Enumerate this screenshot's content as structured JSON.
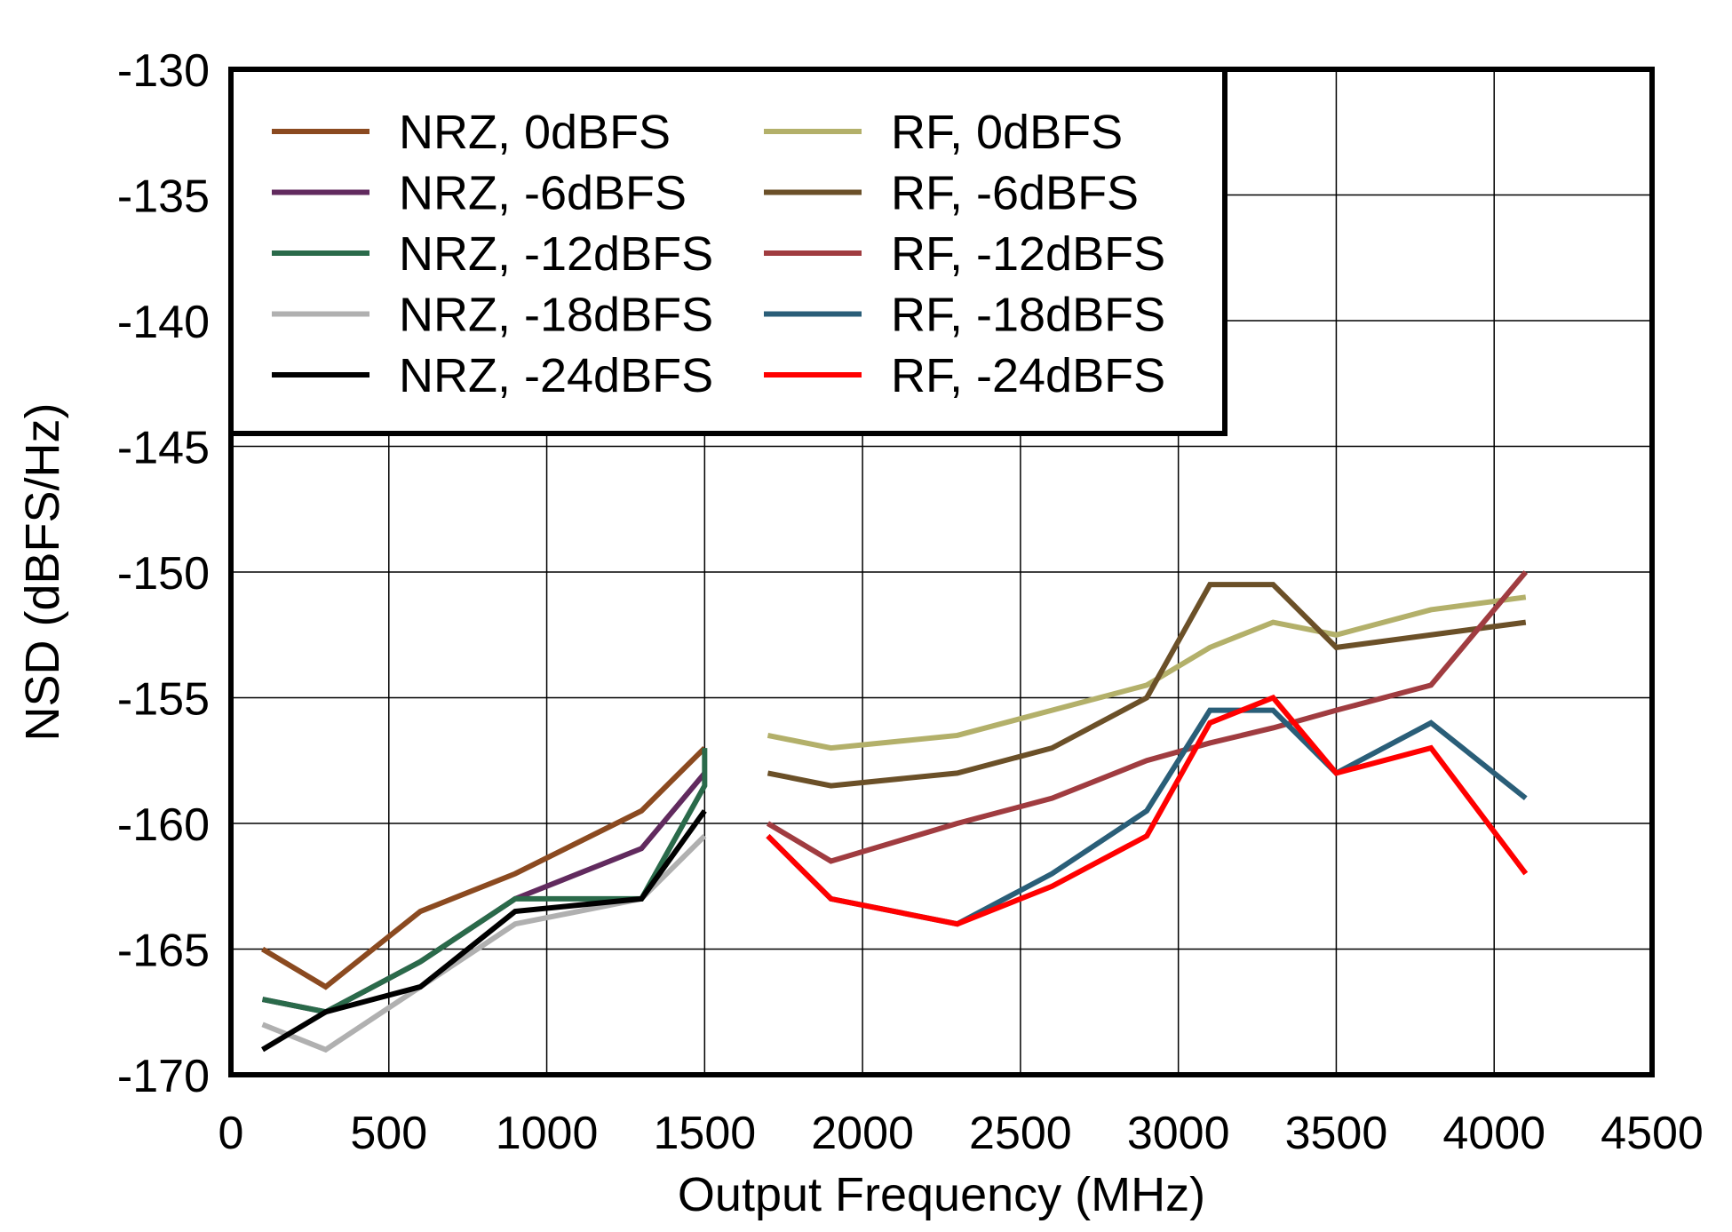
{
  "chart_data": {
    "type": "line",
    "title": "",
    "xlabel": "Output Frequency (MHz)",
    "ylabel": "NSD (dBFS/Hz)",
    "xlim": [
      0,
      4500
    ],
    "ylim": [
      -170,
      -130
    ],
    "xticks": [
      "0",
      "500",
      "1000",
      "1500",
      "2000",
      "2500",
      "3000",
      "3500",
      "4000",
      "4500"
    ],
    "yticks": [
      "-130",
      "-135",
      "-140",
      "-145",
      "-150",
      "-155",
      "-160",
      "-165",
      "-170"
    ],
    "grid": true,
    "legend_position": "top-left",
    "series": [
      {
        "name": "NRZ, 0dBFS",
        "color": "#8b4a20",
        "x": [
          100,
          300,
          600,
          900,
          1300,
          1500
        ],
        "y": [
          -165,
          -166.5,
          -163.5,
          -162,
          -159.5,
          -157
        ]
      },
      {
        "name": "NRZ, -6dBFS",
        "color": "#612a5e",
        "x": [
          100,
          300,
          600,
          900,
          1300,
          1500
        ],
        "y": [
          -167,
          -167.5,
          -165.5,
          -163,
          -161,
          -158
        ]
      },
      {
        "name": "NRZ, -12dBFS",
        "color": "#2a6a4a",
        "x": [
          100,
          300,
          600,
          900,
          1300,
          1500,
          1500
        ],
        "y": [
          -167,
          -167.5,
          -165.5,
          -163,
          -163,
          -158.5,
          -157
        ]
      },
      {
        "name": "NRZ, -18dBFS",
        "color": "#b0b0b0",
        "x": [
          100,
          300,
          600,
          900,
          1300,
          1500
        ],
        "y": [
          -168,
          -169,
          -166.5,
          -164,
          -163,
          -160.5
        ]
      },
      {
        "name": "NRZ, -24dBFS",
        "color": "#000000",
        "x": [
          100,
          300,
          600,
          900,
          1300,
          1500
        ],
        "y": [
          -169,
          -167.5,
          -166.5,
          -163.5,
          -163,
          -159.5
        ]
      },
      {
        "name": "RF, 0dBFS",
        "color": "#b3b06a",
        "x": [
          1700,
          1900,
          2300,
          2600,
          2900,
          3100,
          3300,
          3500,
          3800,
          4100
        ],
        "y": [
          -156.5,
          -157,
          -156.5,
          -155.5,
          -154.5,
          -153,
          -152,
          -152.5,
          -151.5,
          -151
        ]
      },
      {
        "name": "RF, -6dBFS",
        "color": "#6b5028",
        "x": [
          1700,
          1900,
          2300,
          2600,
          2900,
          3100,
          3300,
          3500,
          3800,
          4100
        ],
        "y": [
          -158,
          -158.5,
          -158,
          -157,
          -155,
          -150.5,
          -150.5,
          -153,
          -152.5,
          -152
        ]
      },
      {
        "name": "RF, -12dBFS",
        "color": "#a03c40",
        "x": [
          1700,
          1900,
          2300,
          2600,
          2900,
          3100,
          3300,
          3500,
          3800,
          4100
        ],
        "y": [
          -160,
          -161.5,
          -160,
          -159,
          -157.5,
          -156.8,
          -156.2,
          -155.5,
          -154.5,
          -150
        ]
      },
      {
        "name": "RF, -18dBFS",
        "color": "#2a5e78",
        "x": [
          1700,
          1900,
          2300,
          2600,
          2900,
          3100,
          3300,
          3500,
          3800,
          4100
        ],
        "y": [
          -160.5,
          -163,
          -164,
          -162,
          -159.5,
          -155.5,
          -155.5,
          -158,
          -156,
          -159
        ]
      },
      {
        "name": "RF, -24dBFS",
        "color": "#ff0000",
        "x": [
          1700,
          1900,
          2300,
          2600,
          2900,
          3100,
          3300,
          3500,
          3800,
          4100
        ],
        "y": [
          -160.5,
          -163,
          -164,
          -162.5,
          -160.5,
          -156,
          -155,
          -158,
          -157,
          -162
        ]
      }
    ]
  }
}
